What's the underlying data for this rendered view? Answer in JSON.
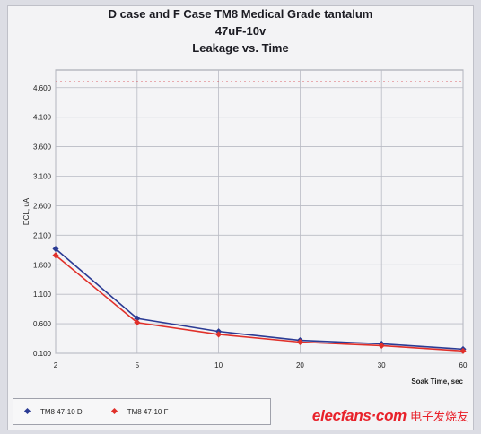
{
  "chart_data": {
    "type": "line",
    "title": "D case and F Case TM8 Medical Grade tantalum",
    "subtitle": "47uF-10v",
    "subtitle2": "Leakage vs. Time",
    "xlabel": "Soak Time, sec",
    "ylabel": "DCL, uA",
    "categories": [
      "2",
      "5",
      "10",
      "20",
      "30",
      "60"
    ],
    "yticks": [
      "0.100",
      "0.600",
      "1.100",
      "1.600",
      "2.100",
      "2.600",
      "3.100",
      "3.600",
      "4.100",
      "4.600"
    ],
    "ytick_values": [
      0.1,
      0.6,
      1.1,
      1.6,
      2.1,
      2.6,
      3.1,
      3.6,
      4.1,
      4.6
    ],
    "ylim": [
      0.1,
      4.9
    ],
    "limit_line": 4.7,
    "grid": true,
    "legend_position": "bottom-left",
    "series": [
      {
        "name": "TM8 47-10 D",
        "values": [
          1.87,
          0.69,
          0.47,
          0.32,
          0.26,
          0.17
        ],
        "color": "#2b3b94"
      },
      {
        "name": "TM8 47-10 F",
        "values": [
          1.76,
          0.62,
          0.42,
          0.29,
          0.23,
          0.14
        ],
        "color": "#e0302a"
      }
    ]
  },
  "watermark": {
    "brand": "elecfans·com",
    "cn": "电子发烧友"
  }
}
